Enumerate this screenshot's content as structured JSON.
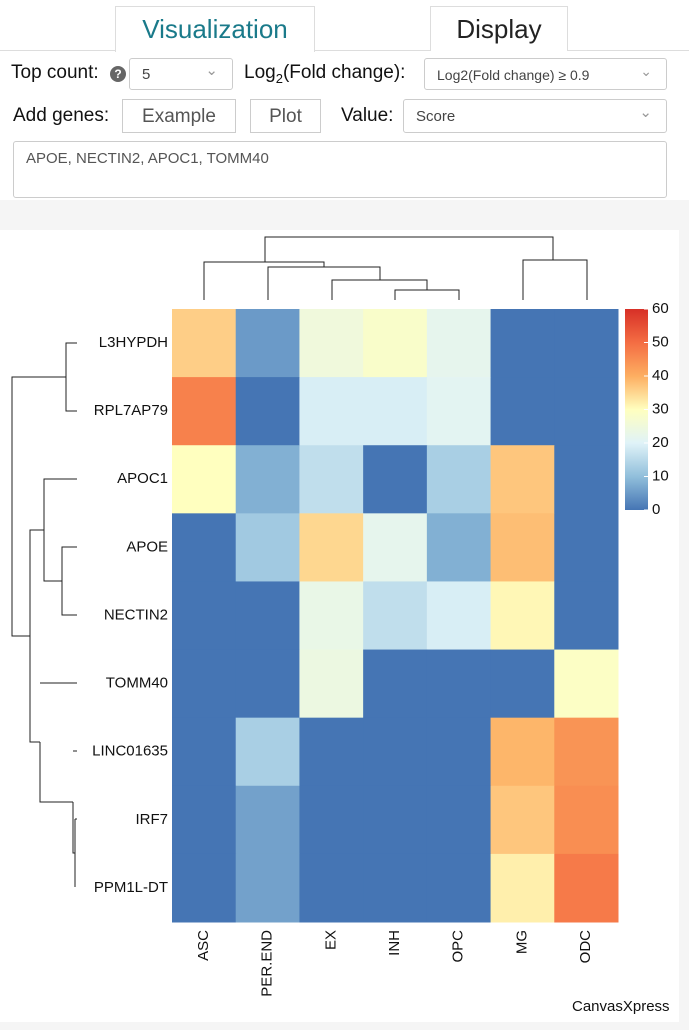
{
  "tabs": [
    "Visualization",
    "Display"
  ],
  "controls": {
    "top_count": {
      "label": "Top count:",
      "help": "?",
      "value": "5"
    },
    "fold_change": {
      "label_main": "Log",
      "label_sub": "2",
      "label_rest": "(Fold change):",
      "value": "Log2(Fold change) ≥ 0.9"
    },
    "add_genes": {
      "label": "Add genes:",
      "buttons": [
        "Example",
        "Plot"
      ]
    },
    "value": {
      "label": "Value:",
      "value": "Score"
    },
    "genes_text": "APOE, NECTIN2, APOC1, TOMM40"
  },
  "chart_data": {
    "type": "heatmap",
    "x": [
      "ASC",
      "PER.END",
      "EX",
      "INH",
      "OPC",
      "MG",
      "ODC"
    ],
    "y": [
      "L3HYPDH",
      "RPL7AP79",
      "APOC1",
      "APOE",
      "NECTIN2",
      "TOMM40",
      "LINC01635",
      "IRF7",
      "PPM1L-DT"
    ],
    "values": [
      [
        36,
        5,
        25,
        28,
        22,
        0,
        0
      ],
      [
        47,
        0,
        19,
        19,
        21,
        0,
        0
      ],
      [
        30,
        8,
        16,
        0,
        13,
        37,
        0
      ],
      [
        0,
        12,
        35,
        22,
        8,
        38,
        0
      ],
      [
        0,
        0,
        23,
        16,
        19,
        31,
        0
      ],
      [
        0,
        0,
        24,
        0,
        0,
        0,
        29
      ],
      [
        0,
        13,
        0,
        0,
        0,
        39,
        44
      ],
      [
        0,
        6,
        0,
        0,
        0,
        37,
        45
      ],
      [
        0,
        6,
        0,
        0,
        0,
        32,
        48
      ]
    ],
    "colors": [
      "#4575b4",
      "#91bfdb",
      "#e0f3f8",
      "#ffffbf",
      "#fdae61",
      "#f46d43",
      "#d73027"
    ],
    "zlim": [
      0,
      60
    ],
    "zticks": [
      0,
      10,
      20,
      30,
      40,
      50,
      60
    ],
    "credit": "CanvasXpress"
  }
}
